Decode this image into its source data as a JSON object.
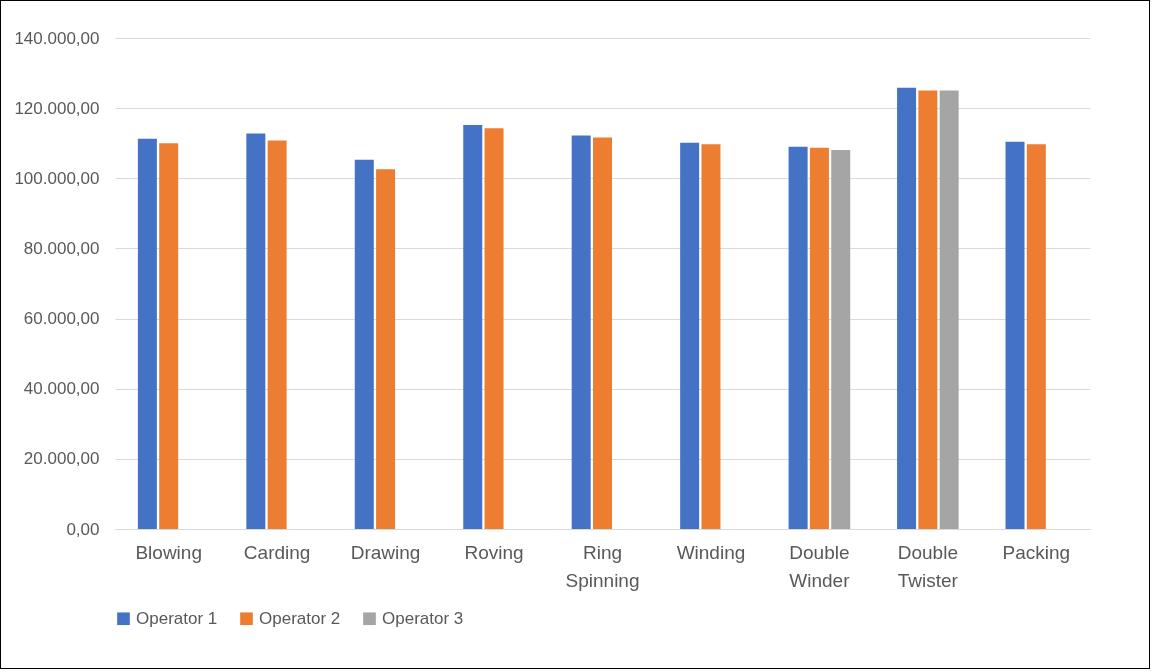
{
  "chart_data": {
    "type": "bar",
    "categories": [
      "Blowing",
      "Carding",
      "Drawing",
      "Roving",
      "Ring Spinning",
      "Winding",
      "Double Winder",
      "Double Twister",
      "Packing"
    ],
    "series": [
      {
        "name": "Operator 1",
        "color": "#4472c4",
        "values": [
          111300,
          112800,
          105300,
          115200,
          112200,
          110100,
          109000,
          125800,
          110400
        ]
      },
      {
        "name": "Operator 2",
        "color": "#ed7d31",
        "values": [
          110000,
          110800,
          102600,
          114300,
          111600,
          109700,
          108700,
          125000,
          109700
        ]
      },
      {
        "name": "Operator 3",
        "color": "#a5a5a5",
        "values": [
          null,
          null,
          null,
          null,
          null,
          null,
          108100,
          125000,
          null
        ]
      }
    ],
    "ylim": [
      0,
      140000
    ],
    "yticks": [
      {
        "value": 0,
        "label": "0,00"
      },
      {
        "value": 20000,
        "label": "20.000,00"
      },
      {
        "value": 40000,
        "label": "40.000,00"
      },
      {
        "value": 60000,
        "label": "60.000,00"
      },
      {
        "value": 80000,
        "label": "80.000,00"
      },
      {
        "value": 100000,
        "label": "100.000,00"
      },
      {
        "value": 120000,
        "label": "120.000,00"
      },
      {
        "value": 140000,
        "label": "140.000,00"
      }
    ],
    "grid": "y",
    "legend": "bottom"
  }
}
